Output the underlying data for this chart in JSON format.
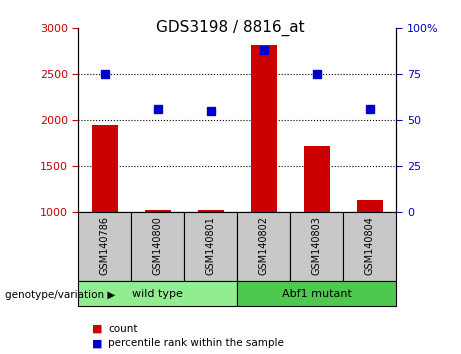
{
  "title": "GDS3198 / 8816_at",
  "samples": [
    "GSM140786",
    "GSM140800",
    "GSM140801",
    "GSM140802",
    "GSM140803",
    "GSM140804"
  ],
  "counts": [
    1950,
    1025,
    1025,
    2820,
    1720,
    1130
  ],
  "percentile_ranks": [
    75,
    56,
    55,
    88,
    75,
    56
  ],
  "left_ylim": [
    1000,
    3000
  ],
  "right_ylim": [
    0,
    100
  ],
  "left_yticks": [
    1000,
    1500,
    2000,
    2500,
    3000
  ],
  "right_yticks": [
    0,
    25,
    50,
    75,
    100
  ],
  "right_yticklabels": [
    "0",
    "25",
    "50",
    "75",
    "100%"
  ],
  "grid_values": [
    1500,
    2000,
    2500
  ],
  "bar_color": "#cc0000",
  "dot_color": "#0000cc",
  "groups": [
    {
      "label": "wild type",
      "start": 0,
      "end": 3,
      "color": "#90ee90"
    },
    {
      "label": "Abf1 mutant",
      "start": 3,
      "end": 6,
      "color": "#4fc84f"
    }
  ],
  "group_label_prefix": "genotype/variation",
  "legend_items": [
    {
      "label": "count",
      "color": "#cc0000"
    },
    {
      "label": "percentile rank within the sample",
      "color": "#0000cc"
    }
  ],
  "tick_label_color_left": "#cc0000",
  "tick_label_color_right": "#0000cc",
  "bar_bottom": 1000,
  "bar_width": 0.5,
  "dot_size": 6,
  "label_box_color": "#c8c8c8",
  "figsize": [
    4.61,
    3.54
  ],
  "dpi": 100
}
